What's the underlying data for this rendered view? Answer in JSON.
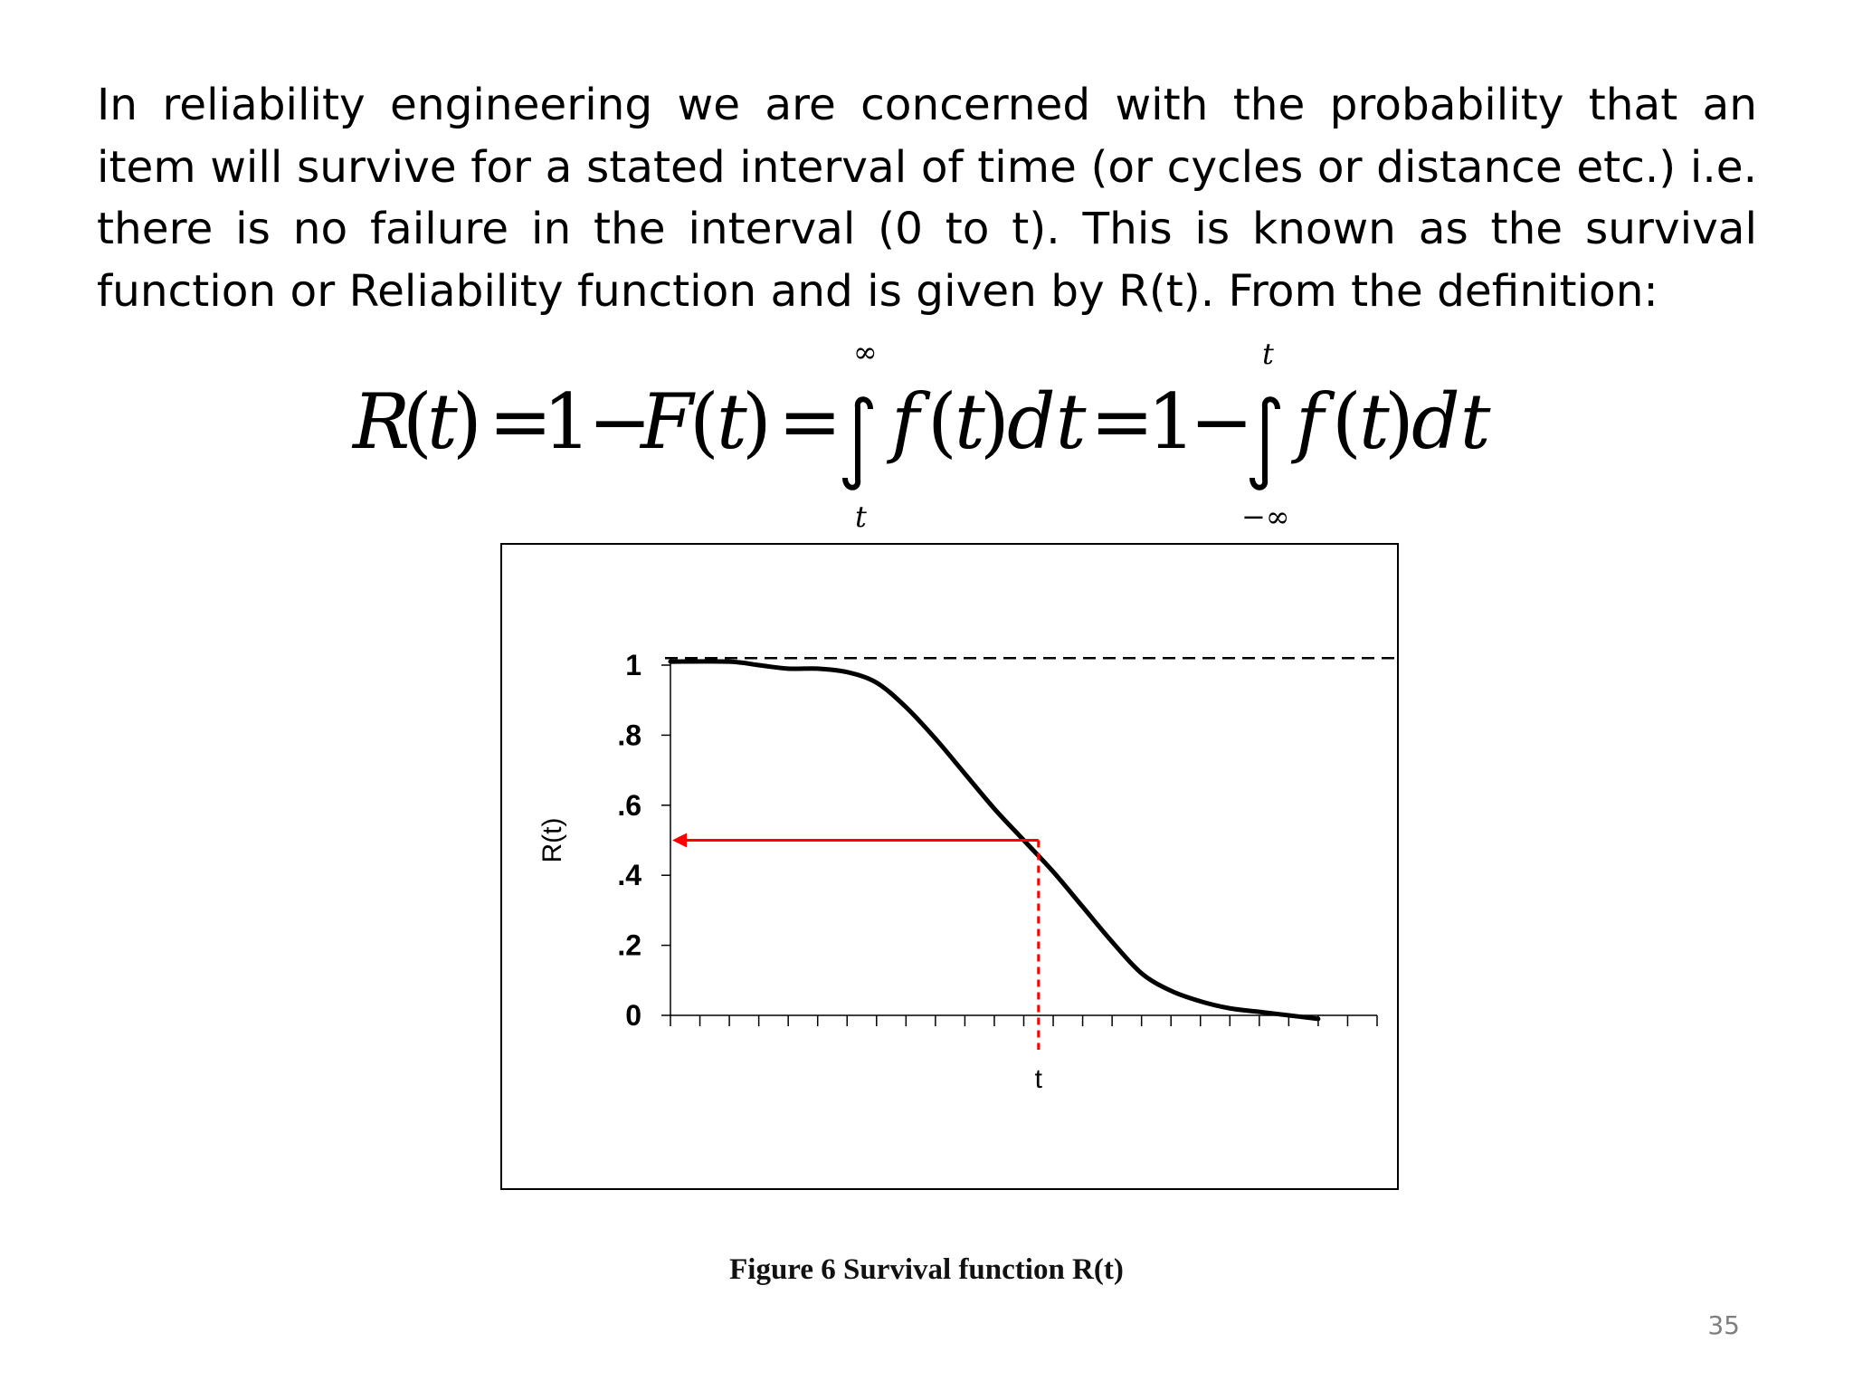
{
  "paragraph": "In reliability engineering we are concerned with the probability that an item will survive for a stated interval of time (or cycles or distance etc.) i.e. there is no failure in the interval (0 to t). This is known as the survival function or Reliability function and is given by R(t). From the definition:",
  "equation": {
    "lhs_R": "R",
    "lhs_t": "t",
    "one": "1",
    "F": "F",
    "f": "f",
    "dt": "dt",
    "int1_upper": "∞",
    "int1_lower": "t",
    "int2_upper": "t",
    "int2_lower": "−∞"
  },
  "chart_data": {
    "type": "line",
    "title": "",
    "xlabel": "t",
    "ylabel": "R(t)",
    "ylim": [
      0,
      1.05
    ],
    "y_ticks": [
      "0",
      ".2",
      ".4",
      ".6",
      ".8",
      "1"
    ],
    "y_tick_values": [
      0,
      0.2,
      0.4,
      0.6,
      0.8,
      1
    ],
    "x_tick_count": 25,
    "x_range": [
      0,
      24
    ],
    "series": [
      {
        "style": "solid",
        "color": "#000000",
        "x": [
          0,
          2,
          3,
          4,
          5,
          6,
          7,
          8,
          9,
          10,
          11,
          12,
          13,
          14,
          15,
          16,
          17,
          18,
          19,
          20,
          21,
          22
        ],
        "y": [
          1.01,
          1.01,
          1.0,
          0.99,
          0.99,
          0.98,
          0.95,
          0.88,
          0.79,
          0.69,
          0.59,
          0.5,
          0.41,
          0.31,
          0.21,
          0.12,
          0.07,
          0.04,
          0.02,
          0.01,
          0.0,
          -0.01
        ]
      }
    ],
    "reference_line": {
      "y": 1.02,
      "style": "dashed",
      "color": "#000000"
    },
    "marker": {
      "x": 12.5,
      "y": 0.5,
      "label": "t",
      "color": "#ff0000",
      "style": "arrow-to-y-axis, dashed-to-x-axis"
    }
  },
  "caption": "Figure 6 Survival function R(t)",
  "page_number": "35"
}
